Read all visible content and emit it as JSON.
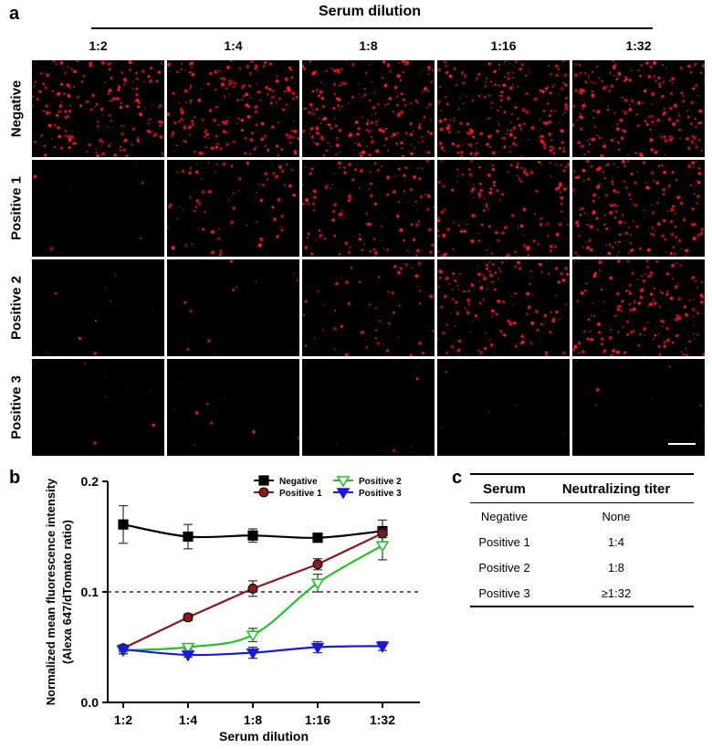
{
  "panels": {
    "a": "a",
    "b": "b",
    "c": "c"
  },
  "microscopy": {
    "title": "Serum dilution",
    "columns": [
      "1:2",
      "1:4",
      "1:8",
      "1:16",
      "1:32"
    ],
    "rows": [
      "Negative",
      "Positive 1",
      "Positive 2",
      "Positive 3"
    ],
    "signal_levels": [
      [
        0.85,
        0.95,
        0.95,
        0.92,
        0.95
      ],
      [
        0.02,
        0.35,
        0.55,
        0.65,
        0.85
      ],
      [
        0.03,
        0.05,
        0.25,
        0.65,
        0.75
      ],
      [
        0.02,
        0.03,
        0.01,
        0.01,
        0.02
      ]
    ],
    "signal_color": "#ff1a1a",
    "scale_bar_color": "#ffffff"
  },
  "chart_data": {
    "type": "line",
    "categories": [
      "1:2",
      "1:4",
      "1:8",
      "1:16",
      "1:32"
    ],
    "xlabel": "Serum dilution",
    "ylabel_line1": "Normalized mean fluorescence intensity",
    "ylabel_line2": "(Alexa 647/dTomato ratio)",
    "ylim": [
      0,
      0.2
    ],
    "yticks": [
      "0.0",
      "0.1",
      "0.2"
    ],
    "threshold": 0.1,
    "series": [
      {
        "name": "Negative",
        "marker": "square",
        "color": "#000000",
        "fill": "#000000",
        "values": [
          0.161,
          0.15,
          0.151,
          0.149,
          0.155
        ],
        "errors": [
          0.017,
          0.011,
          0.006,
          0.004,
          0.01
        ]
      },
      {
        "name": "Positive 1",
        "marker": "circle",
        "color": "#8b1a1a",
        "fill": "#8b1a1a",
        "values": [
          0.049,
          0.077,
          0.103,
          0.125,
          0.153
        ],
        "errors": [
          0.003,
          0.003,
          0.007,
          0.005,
          0.004
        ]
      },
      {
        "name": "Positive 2",
        "marker": "tri-down",
        "color": "#22c422",
        "fill": "#ffffff",
        "values": [
          0.047,
          0.05,
          0.061,
          0.108,
          0.142
        ],
        "errors": [
          0.003,
          0.002,
          0.006,
          0.008,
          0.013
        ]
      },
      {
        "name": "Positive 3",
        "marker": "tri-down",
        "color": "#1a1adb",
        "fill": "#1a1adb",
        "values": [
          0.048,
          0.043,
          0.045,
          0.05,
          0.051
        ],
        "errors": [
          0.004,
          0.002,
          0.005,
          0.005,
          0.004
        ]
      }
    ]
  },
  "table": {
    "headers": [
      "Serum",
      "Neutralizing titer"
    ],
    "rows": [
      [
        "Negative",
        "None"
      ],
      [
        "Positive 1",
        "1:4"
      ],
      [
        "Positive 2",
        "1:8"
      ],
      [
        "Positive 3",
        "≥1:32"
      ]
    ]
  }
}
